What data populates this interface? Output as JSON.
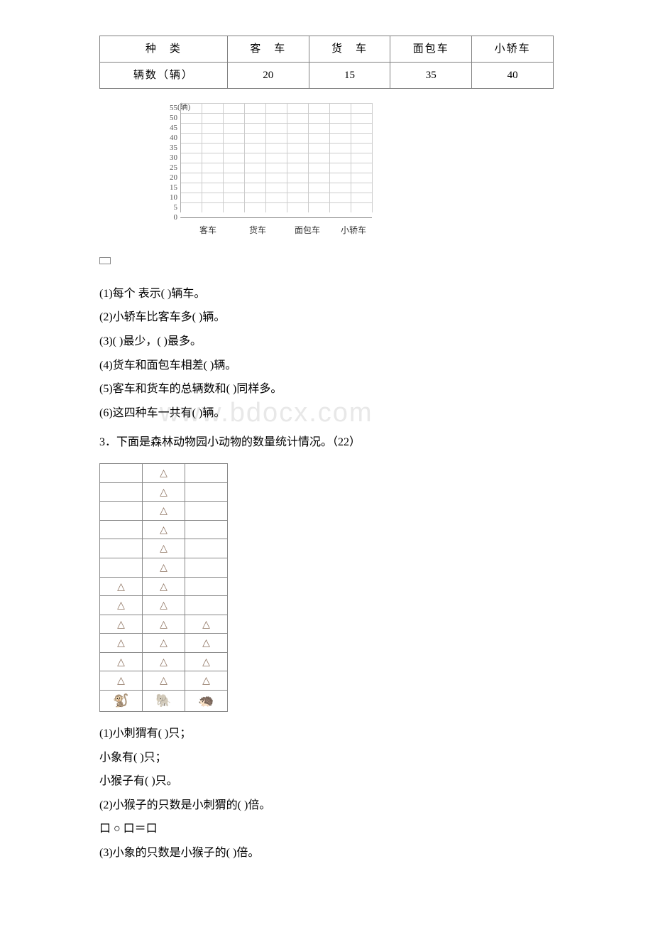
{
  "vehicle_table": {
    "header_label": "种　类",
    "row_label": "辆数（辆）",
    "columns": [
      "客　车",
      "货　车",
      "面包车",
      "小轿车"
    ],
    "values": [
      "20",
      "15",
      "35",
      "40"
    ]
  },
  "bar_chart": {
    "y_axis_label": "(辆)",
    "y_ticks": [
      "55",
      "50",
      "45",
      "40",
      "35",
      "30",
      "25",
      "20",
      "15",
      "10",
      "5",
      "0"
    ],
    "x_labels": [
      "客车",
      "货车",
      "面包车",
      "小轿车"
    ],
    "grid_cols_per_group": 2,
    "groups": 4,
    "gap_between_groups": 0
  },
  "q1": {
    "q1_1": "(1)每个 表示( )辆车。",
    "q1_2": "(2)小轿车比客车多( )辆。",
    "q1_3": "(3)( )最少，( )最多。",
    "q1_4": "(4)货车和面包车相差( )辆。",
    "q1_5": "(5)客车和货车的总辆数和( )同样多。",
    "q1_6": "(6)这四种车一共有( )辆。"
  },
  "watermark_text": "www.bdocx.com",
  "q3_title": "3．下面是森林动物园小动物的数量统计情况。（22）",
  "pictogram": {
    "rows": 12,
    "cols": 3,
    "triangle_glyph": "△",
    "data": [
      [
        "",
        "△",
        ""
      ],
      [
        "",
        "△",
        ""
      ],
      [
        "",
        "△",
        ""
      ],
      [
        "",
        "△",
        ""
      ],
      [
        "",
        "△",
        ""
      ],
      [
        "",
        "△",
        ""
      ],
      [
        "△",
        "△",
        ""
      ],
      [
        "△",
        "△",
        ""
      ],
      [
        "△",
        "△",
        "△"
      ],
      [
        "△",
        "△",
        "△"
      ],
      [
        "△",
        "△",
        "△"
      ],
      [
        "△",
        "△",
        "△"
      ]
    ],
    "footer_icons": [
      "🐒",
      "🐘",
      "🦔"
    ]
  },
  "q3": {
    "q3_1a": "(1)小刺猬有( )只；",
    "q3_1b": "小象有( )只；",
    "q3_1c": "小猴子有( )只。",
    "q3_2": "(2)小猴子的只数是小刺猬的( )倍。",
    "q3_eq": "口 ○ 口＝口",
    "q3_3": "(3)小象的只数是小猴子的( )倍。"
  }
}
